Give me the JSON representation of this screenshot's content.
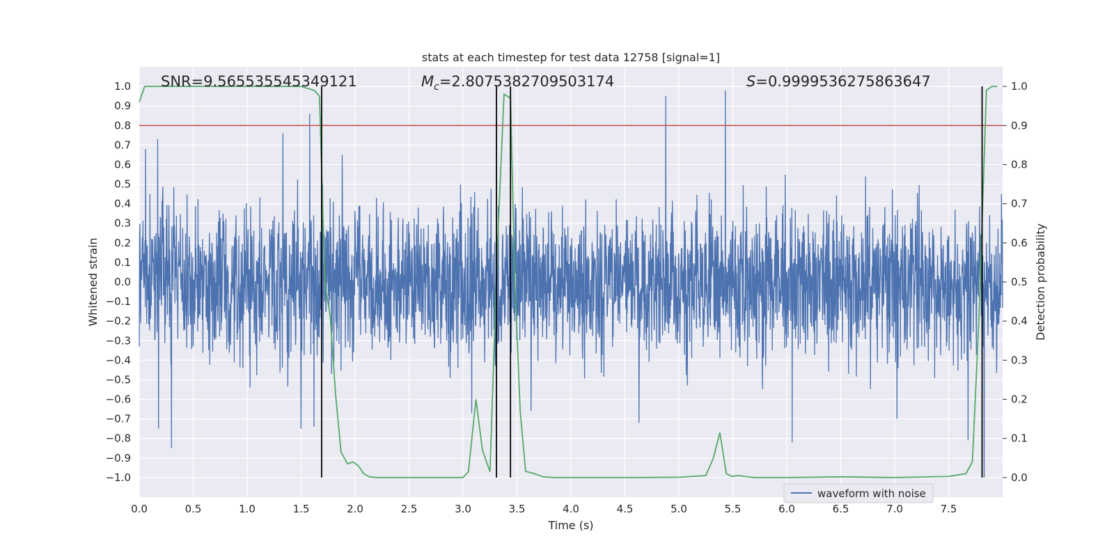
{
  "chart_data": {
    "type": "line",
    "title": "stats at each timestep for test data 12758 [signal=1]",
    "xlabel": "Time (s)",
    "ylabel_left": "Whitened strain",
    "ylabel_right": "Detection probability",
    "xlim": [
      0.0,
      8.0
    ],
    "ylim_left": [
      -1.1,
      1.1
    ],
    "ylim_right": [
      -0.05,
      1.05
    ],
    "x_ticks": [
      "0.0",
      "0.5",
      "1.0",
      "1.5",
      "2.0",
      "2.5",
      "3.0",
      "3.5",
      "4.0",
      "4.5",
      "5.0",
      "5.5",
      "6.0",
      "6.5",
      "7.0",
      "7.5"
    ],
    "x_tick_values": [
      0.0,
      0.5,
      1.0,
      1.5,
      2.0,
      2.5,
      3.0,
      3.5,
      4.0,
      4.5,
      5.0,
      5.5,
      6.0,
      6.5,
      7.0,
      7.5
    ],
    "y_left_ticks": [
      "1.0",
      "0.9",
      "0.8",
      "0.7",
      "0.6",
      "0.5",
      "0.4",
      "0.3",
      "0.2",
      "0.1",
      "0.0",
      "−0.1",
      "−0.2",
      "−0.3",
      "−0.4",
      "−0.5",
      "−0.6",
      "−0.7",
      "−0.8",
      "−0.9",
      "−1.0"
    ],
    "y_left_tick_values": [
      1.0,
      0.9,
      0.8,
      0.7,
      0.6,
      0.5,
      0.4,
      0.3,
      0.2,
      0.1,
      0.0,
      -0.1,
      -0.2,
      -0.3,
      -0.4,
      -0.5,
      -0.6,
      -0.7,
      -0.8,
      -0.9,
      -1.0
    ],
    "y_right_ticks": [
      "1.0",
      "0.9",
      "0.8",
      "0.7",
      "0.6",
      "0.5",
      "0.4",
      "0.3",
      "0.2",
      "0.1",
      "0.0"
    ],
    "y_right_tick_values": [
      1.0,
      0.9,
      0.8,
      0.7,
      0.6,
      0.5,
      0.4,
      0.3,
      0.2,
      0.1,
      0.0
    ],
    "annotations": {
      "snr": "SNR=9.565535545349121",
      "mc_symbol": "M",
      "mc_sub": "c",
      "mc_value": "=2.8075382709503174",
      "s_symbol": "S",
      "s_value": "=0.9999536275863647"
    },
    "waveform": {
      "name": "waveform with noise",
      "color": "#4c72b0",
      "n_samples": 3000,
      "band_sigma": 0.18,
      "spikes": [
        {
          "x": 0.06,
          "y": 0.68
        },
        {
          "x": 0.17,
          "y": 0.73
        },
        {
          "x": 0.18,
          "y": -0.75
        },
        {
          "x": 0.3,
          "y": -0.85
        },
        {
          "x": 1.33,
          "y": 0.76
        },
        {
          "x": 1.58,
          "y": 0.86
        },
        {
          "x": 1.5,
          "y": -0.75
        },
        {
          "x": 1.62,
          "y": -0.74
        },
        {
          "x": 3.08,
          "y": -0.67
        },
        {
          "x": 3.63,
          "y": -0.66
        },
        {
          "x": 4.88,
          "y": 0.95
        },
        {
          "x": 4.63,
          "y": -0.72
        },
        {
          "x": 5.43,
          "y": 0.98
        },
        {
          "x": 6.05,
          "y": -0.82
        },
        {
          "x": 7.68,
          "y": -0.81
        },
        {
          "x": 7.83,
          "y": -1.0
        },
        {
          "x": 7.02,
          "y": -0.7
        },
        {
          "x": 1.88,
          "y": 0.65
        }
      ]
    },
    "detection_probability": {
      "color": "#55a868",
      "x": [
        0.0,
        0.05,
        0.1,
        0.5,
        1.0,
        1.5,
        1.62,
        1.67,
        1.72,
        1.77,
        1.82,
        1.87,
        1.93,
        1.98,
        2.03,
        2.08,
        2.13,
        2.2,
        2.5,
        2.8,
        3.0,
        3.05,
        3.12,
        3.18,
        3.25,
        3.32,
        3.38,
        3.44,
        3.48,
        3.53,
        3.58,
        3.66,
        3.74,
        3.85,
        4.0,
        4.3,
        4.6,
        5.0,
        5.25,
        5.32,
        5.38,
        5.44,
        5.49,
        5.55,
        5.7,
        6.0,
        6.5,
        7.0,
        7.5,
        7.66,
        7.72,
        7.78,
        7.85,
        7.9,
        7.95
      ],
      "y": [
        0.96,
        1.0,
        1.0,
        1.0,
        1.0,
        1.0,
        0.99,
        0.975,
        0.5,
        0.41,
        0.21,
        0.065,
        0.035,
        0.04,
        0.03,
        0.01,
        0.002,
        0.0,
        0.0,
        0.0,
        0.0,
        0.015,
        0.2,
        0.07,
        0.015,
        0.6,
        0.98,
        0.97,
        0.5,
        0.17,
        0.016,
        0.01,
        0.002,
        0.0,
        0.0,
        0.0,
        0.0,
        0.001,
        0.005,
        0.05,
        0.115,
        0.01,
        0.003,
        0.005,
        0.0,
        0.0,
        0.002,
        0.0,
        0.003,
        0.01,
        0.04,
        0.4,
        0.99,
        1.0,
        1.0
      ]
    },
    "threshold": {
      "color": "#c44e52",
      "y_right": 0.9
    },
    "vertical_lines_x": [
      1.69,
      3.31,
      3.44,
      7.81
    ],
    "legend": {
      "label": "waveform with noise",
      "position": "lower-right"
    }
  }
}
